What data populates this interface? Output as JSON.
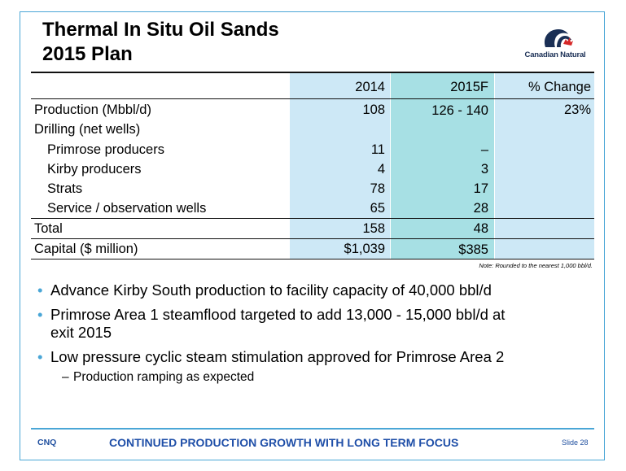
{
  "title_line1": "Thermal In Situ Oil Sands",
  "title_line2": "2015 Plan",
  "logo_text": "Canadian Natural",
  "table": {
    "headers": {
      "col1": "2014",
      "col2": "2015F",
      "col3": "% Change"
    },
    "rows": [
      {
        "label": "Production (Mbbl/d)",
        "v2014": "108",
        "v2015": "126 - 140",
        "pct": "23%"
      },
      {
        "label": "Drilling (net wells)",
        "v2014": "",
        "v2015": "",
        "pct": ""
      },
      {
        "label": "Primrose producers",
        "v2014": "11",
        "v2015": "–",
        "pct": ""
      },
      {
        "label": "Kirby producers",
        "v2014": "4",
        "v2015": "3",
        "pct": ""
      },
      {
        "label": "Strats",
        "v2014": "78",
        "v2015": "17",
        "pct": ""
      },
      {
        "label": "Service / observation wells",
        "v2014": "65",
        "v2015": "28",
        "pct": ""
      },
      {
        "label": "Total",
        "v2014": "158",
        "v2015": "48",
        "pct": ""
      },
      {
        "label": "Capital ($ million)",
        "v2014": "$1,039",
        "v2015": "$385",
        "pct": ""
      }
    ]
  },
  "note": "Note: Rounded to the nearest 1,000 bbl/d.",
  "bullets": {
    "b1": "Advance Kirby South production to facility capacity of 40,000 bbl/d",
    "b2_line1": "Primrose Area 1 steamflood targeted to add 13,000 - 15,000 bbl/d at",
    "b2_line2": "exit 2015",
    "b3": "Low pressure cyclic steam stimulation approved for Primrose Area 2",
    "b3_sub": "Production ramping as expected"
  },
  "footer": {
    "left": "CNQ",
    "center": "CONTINUED PRODUCTION GROWTH WITH LONG TERM FOCUS",
    "right": "Slide 28"
  },
  "colors": {
    "accent_blue": "#4aa6d6",
    "col_light_blue": "#cde8f6",
    "col_teal": "#a7e0e4",
    "footer_blue": "#1f4fa8"
  }
}
